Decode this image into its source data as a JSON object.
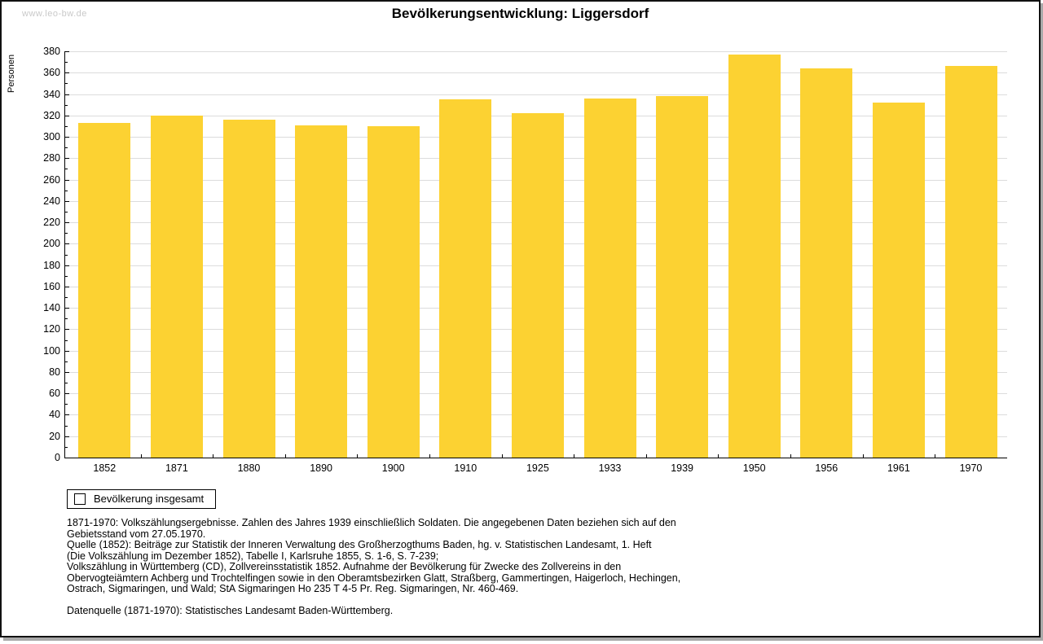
{
  "watermark": "www.leo-bw.de",
  "title": "Bevölkerungsentwicklung: Liggersdorf",
  "chart_data": {
    "type": "bar",
    "title": "Bevölkerungsentwicklung: Liggersdorf",
    "xlabel": "",
    "ylabel": "Personen",
    "categories": [
      "1852",
      "1871",
      "1880",
      "1890",
      "1900",
      "1910",
      "1925",
      "1933",
      "1939",
      "1950",
      "1956",
      "1961",
      "1970"
    ],
    "values": [
      313,
      320,
      316,
      311,
      310,
      335,
      322,
      336,
      338,
      377,
      364,
      332,
      366
    ],
    "ylim": [
      0,
      380
    ],
    "ytick_step": 20,
    "yminor_step": 10,
    "grid": true,
    "legend_position": "bottom-left",
    "series_name": "Bevölkerung insgesamt",
    "bar_color": "#FCD232",
    "gridline_color": "#dcdcdc"
  },
  "legend": {
    "label": "Bevölkerung insgesamt"
  },
  "footnote": {
    "lines": [
      "1871-1970: Volkszählungsergebnisse. Zahlen des Jahres 1939 einschließlich Soldaten. Die angegebenen Daten beziehen sich auf den",
      "Gebietsstand vom 27.05.1970.",
      "Quelle (1852): Beiträge zur Statistik der Inneren Verwaltung des Großherzogthums Baden, hg. v. Statistischen Landesamt, 1. Heft",
      "(Die Volkszählung im Dezember 1852), Tabelle I, Karlsruhe 1855, S. 1-6, S. 7-239;",
      "Volkszählung in Württemberg (CD), Zollvereinsstatistik 1852. Aufnahme der Bevölkerung für Zwecke des Zollvereins in den",
      "Obervogteiämtern Achberg und Trochtelfingen sowie in den Oberamtsbezirken Glatt, Straßberg, Gammertingen, Haigerloch, Hechingen,",
      "Ostrach, Sigmaringen, und Wald; StA Sigmaringen Ho 235 T 4-5 Pr. Reg. Sigmaringen, Nr. 460-469."
    ],
    "datasource": "Datenquelle (1871-1970): Statistisches Landesamt Baden-Württemberg."
  }
}
